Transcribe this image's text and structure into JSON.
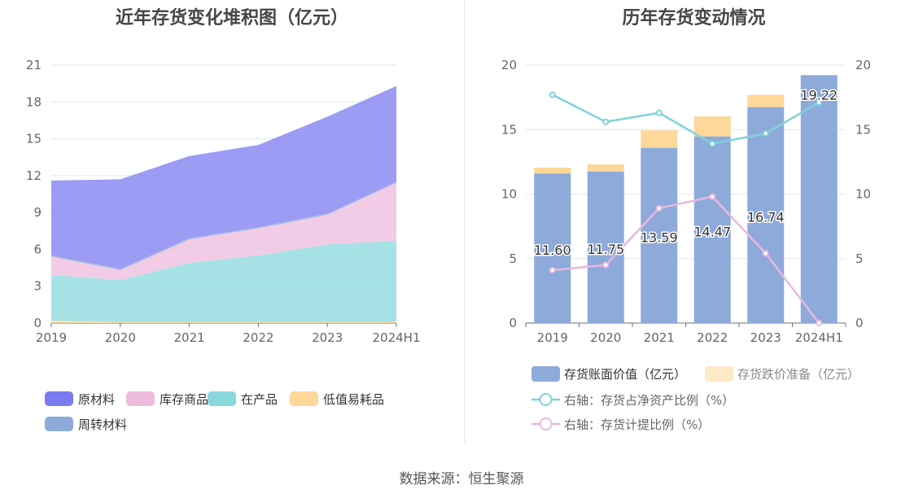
{
  "source_note": "数据来源：恒生聚源",
  "chart_data": [
    {
      "type": "area",
      "stacked": true,
      "title": "近年存货变化堆积图（亿元）",
      "categories": [
        "2019",
        "2020",
        "2021",
        "2022",
        "2023",
        "2024H1"
      ],
      "y_ticks": [
        "0",
        "3",
        "6",
        "9",
        "12",
        "15",
        "18",
        "21"
      ],
      "ylim": [
        0,
        21
      ],
      "grid": true,
      "legend_position": "bottom",
      "series": [
        {
          "name": "低值易耗品",
          "color": "#fdd89a",
          "values": [
            0.2,
            0.1,
            0.1,
            0.1,
            0.1,
            0.1
          ]
        },
        {
          "name": "在产品",
          "color": "#88d8dc",
          "values": [
            3.7,
            3.4,
            4.8,
            5.4,
            6.3,
            6.6
          ]
        },
        {
          "name": "库存商品",
          "color": "#eebbdd",
          "values": [
            1.5,
            0.8,
            1.9,
            2.2,
            2.4,
            4.7
          ]
        },
        {
          "name": "周转材料",
          "color": "#8eaadb",
          "values": [
            0.1,
            0.1,
            0.1,
            0.1,
            0.1,
            0.1
          ]
        },
        {
          "name": "原材料",
          "color": "#7b7bf0",
          "values": [
            6.1,
            7.3,
            6.7,
            6.7,
            7.9,
            7.8
          ]
        }
      ],
      "legend": [
        {
          "name": "原材料",
          "color": "#7b7bf0"
        },
        {
          "name": "库存商品",
          "color": "#eebbdd"
        },
        {
          "name": "在产品",
          "color": "#88d8dc"
        },
        {
          "name": "低值易耗品",
          "color": "#fdd89a"
        },
        {
          "name": "周转材料",
          "color": "#8eaadb"
        }
      ]
    },
    {
      "type": "bar",
      "stacked": true,
      "title": "历年存货变动情况",
      "categories": [
        "2019",
        "2020",
        "2021",
        "2022",
        "2023",
        "2024H1"
      ],
      "y_ticks": [
        "0",
        "5",
        "10",
        "15",
        "20"
      ],
      "y2_ticks": [
        "0",
        "5",
        "10",
        "15",
        "20"
      ],
      "ylim": [
        0,
        20
      ],
      "y2lim": [
        0,
        20
      ],
      "grid": true,
      "legend_position": "bottom",
      "bar_series": [
        {
          "name": "存货账面价值（亿元）",
          "color": "#8eaadb",
          "values": [
            11.6,
            11.75,
            13.59,
            14.47,
            16.74,
            19.22
          ],
          "labels": [
            "11.60",
            "11.75",
            "13.59",
            "14.47",
            "16.74",
            "19.22"
          ]
        },
        {
          "name": "存货跌价准备（亿元）",
          "color": "#fdd89a",
          "legend_color": "#fde8c8",
          "values": [
            0.45,
            0.55,
            1.35,
            1.55,
            0.95,
            0.0
          ]
        }
      ],
      "line_series": [
        {
          "name": "右轴：存货占净资产比例（%）",
          "color": "#7fd3d8",
          "axis": "right",
          "values": [
            17.7,
            15.6,
            16.3,
            13.9,
            14.7,
            17.1
          ]
        },
        {
          "name": "右轴：存货计提比例（%）",
          "color": "#e8b8dc",
          "axis": "right",
          "values": [
            4.1,
            4.5,
            8.9,
            9.8,
            5.4,
            0.0
          ]
        }
      ]
    }
  ]
}
